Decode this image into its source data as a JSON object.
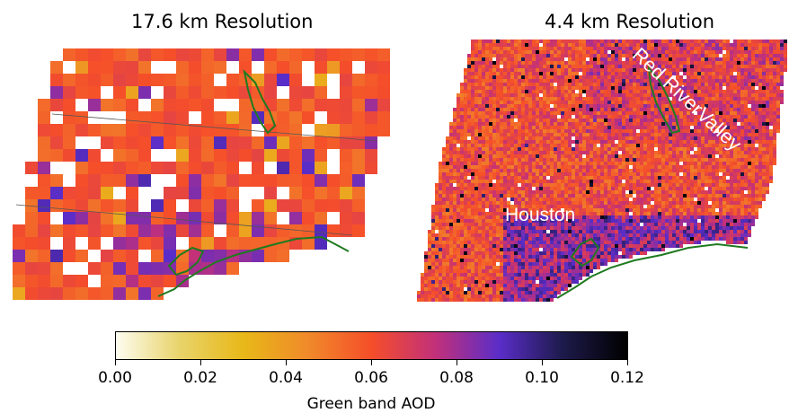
{
  "panels": {
    "left": {
      "title": "17.6 km Resolution"
    },
    "right": {
      "title": "4.4 km Resolution"
    }
  },
  "map_labels": {
    "houston": "Houston",
    "red_river": "Red RiverValley"
  },
  "colorbar": {
    "label": "Green band AOD",
    "ticks": [
      "0.00",
      "0.02",
      "0.04",
      "0.06",
      "0.08",
      "0.10",
      "0.12"
    ],
    "range": [
      0.0,
      0.12
    ],
    "colormap": "CMRmap_r-like (white → yellow → orange → red → purple → black)",
    "stops": [
      "#fdfdf0",
      "#e8d36a",
      "#e8b818",
      "#f08a2a",
      "#f54e2a",
      "#c2307a",
      "#5a2dc8",
      "#1c1a4a",
      "#000000"
    ]
  },
  "colors": {
    "coastline": "#1f7a1f"
  }
}
